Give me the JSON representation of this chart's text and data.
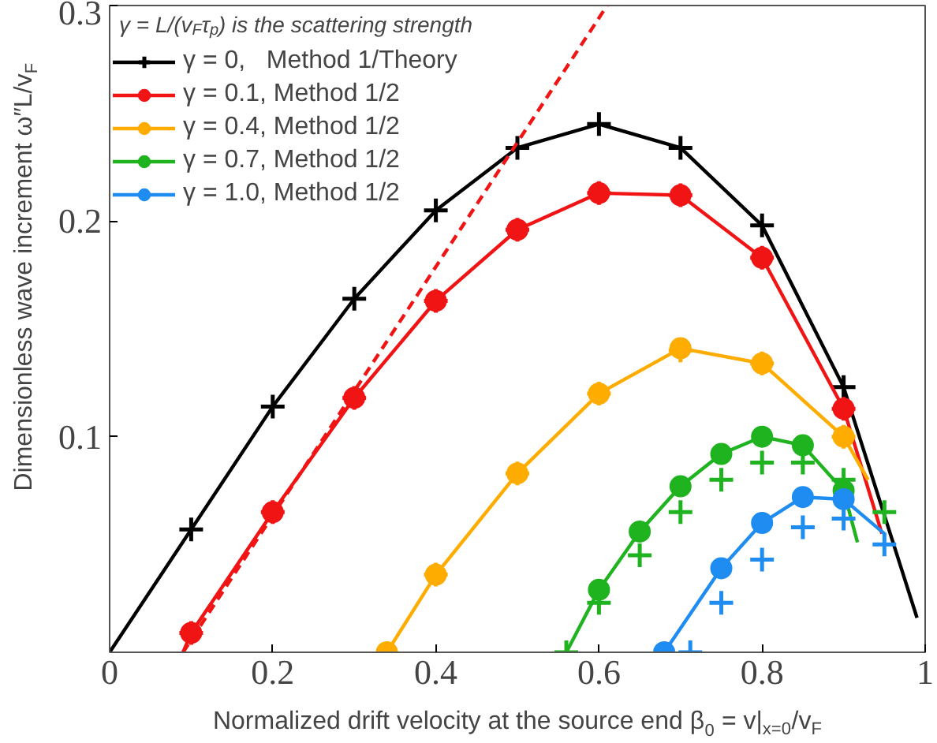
{
  "chart_data": {
    "type": "line",
    "xlabel": "Normalized drift velocity at the source end β$_{0}$ = v|$_{x=0}$/v$_{F}$",
    "ylabel": "Dimensionless wave increment  ω″L/v$_{F}$",
    "annotations": [
      "γ = L/(v$_{F}$τ$_{p}$) is the scattering strength"
    ],
    "xlim": [
      0,
      1
    ],
    "ylim": [
      0,
      0.3
    ],
    "xticks": [
      0,
      0.2,
      0.4,
      0.6,
      0.8,
      1
    ],
    "yticks": [
      0.1,
      0.2,
      0.3
    ],
    "grid": false,
    "legend": "top left",
    "marker": "none",
    "line_style": "solid",
    "series": [
      {
        "name": "γ = 0,   Method 1/Theory",
        "color": "#000000",
        "x": [
          0,
          0.1,
          0.2,
          0.3,
          0.4,
          0.5,
          0.6,
          0.7,
          0.8,
          0.9,
          0.99
        ],
        "values": [
          0,
          0.057,
          0.114,
          0.164,
          0.205,
          0.234,
          0.245,
          0.234,
          0.198,
          0.123,
          0.016
        ]
      },
      {
        "type": "scatter",
        "marker": "cross",
        "color": "#000000",
        "x": [
          0.1,
          0.2,
          0.3,
          0.4,
          0.5,
          0.6,
          0.7,
          0.8,
          0.9
        ],
        "values": [
          0.057,
          0.114,
          0.164,
          0.205,
          0.234,
          0.245,
          0.234,
          0.198,
          0.123
        ]
      },
      {
        "name": "γ = 0.1, Method 1/2",
        "color": "#f01414",
        "x": [
          0.09,
          0.1,
          0.2,
          0.3,
          0.4,
          0.5,
          0.6,
          0.7,
          0.8,
          0.9,
          0.947
        ],
        "values": [
          0,
          0.009,
          0.065,
          0.118,
          0.163,
          0.196,
          0.213,
          0.212,
          0.183,
          0.113,
          0.055
        ]
      },
      {
        "type": "scatter",
        "marker": "circle",
        "color": "#f01414",
        "x": [
          0.1,
          0.2,
          0.3,
          0.4,
          0.5,
          0.6,
          0.7,
          0.8,
          0.9
        ],
        "values": [
          0.009,
          0.065,
          0.118,
          0.163,
          0.196,
          0.213,
          0.212,
          0.183,
          0.113
        ]
      },
      {
        "type": "scatter",
        "marker": "cross",
        "color": "#f01414",
        "x": [
          0.1,
          0.2,
          0.3,
          0.4,
          0.5,
          0.6,
          0.7,
          0.8,
          0.9
        ],
        "values": [
          0.009,
          0.065,
          0.118,
          0.163,
          0.196,
          0.213,
          0.212,
          0.183,
          0.113
        ]
      },
      {
        "color": "#f01414",
        "line_style": "dashed",
        "x": [
          0.09,
          0.61
        ],
        "values": [
          0,
          0.3
        ]
      },
      {
        "name": "γ = 0.4, Method 1/2",
        "color": "#ffac00",
        "x": [
          0.34,
          0.4,
          0.5,
          0.6,
          0.7,
          0.8,
          0.9,
          0.93
        ],
        "values": [
          0,
          0.036,
          0.083,
          0.12,
          0.141,
          0.134,
          0.1,
          0.08
        ]
      },
      {
        "type": "scatter",
        "marker": "circle",
        "color": "#ffac00",
        "x": [
          0.34,
          0.4,
          0.5,
          0.6,
          0.7,
          0.8,
          0.9
        ],
        "values": [
          0,
          0.036,
          0.083,
          0.12,
          0.141,
          0.134,
          0.1
        ]
      },
      {
        "type": "scatter",
        "marker": "cross",
        "color": "#ffac00",
        "x": [
          0.4,
          0.5,
          0.6,
          0.7,
          0.8,
          0.9
        ],
        "values": [
          0.036,
          0.083,
          0.12,
          0.14,
          0.134,
          0.1
        ]
      },
      {
        "name": "γ = 0.7, Method 1/2",
        "color": "#1fb31f",
        "x": [
          0.56,
          0.6,
          0.65,
          0.7,
          0.75,
          0.8,
          0.85,
          0.9,
          0.917
        ],
        "values": [
          0,
          0.029,
          0.056,
          0.077,
          0.092,
          0.1,
          0.096,
          0.075,
          0.051
        ]
      },
      {
        "type": "scatter",
        "marker": "circle",
        "color": "#1fb31f",
        "x": [
          0.6,
          0.65,
          0.7,
          0.75,
          0.8,
          0.85,
          0.9
        ],
        "values": [
          0.029,
          0.056,
          0.077,
          0.092,
          0.1,
          0.096,
          0.075
        ]
      },
      {
        "type": "scatter",
        "marker": "cross",
        "color": "#1fb31f",
        "x": [
          0.56,
          0.6,
          0.65,
          0.7,
          0.75,
          0.8,
          0.85,
          0.9,
          0.95
        ],
        "values": [
          0,
          0.023,
          0.045,
          0.065,
          0.08,
          0.088,
          0.088,
          0.08,
          0.065
        ]
      },
      {
        "name": "γ = 1.0, Method 1/2",
        "color": "#1e8cf0",
        "x": [
          0.68,
          0.75,
          0.8,
          0.85,
          0.9,
          0.95
        ],
        "values": [
          0,
          0.039,
          0.06,
          0.072,
          0.071,
          0.055
        ]
      },
      {
        "type": "scatter",
        "marker": "circle",
        "color": "#1e8cf0",
        "x": [
          0.68,
          0.75,
          0.8,
          0.85,
          0.9
        ],
        "values": [
          0,
          0.039,
          0.06,
          0.072,
          0.071
        ]
      },
      {
        "type": "scatter",
        "marker": "cross",
        "color": "#1e8cf0",
        "x": [
          0.712,
          0.75,
          0.8,
          0.85,
          0.9,
          0.95
        ],
        "values": [
          0,
          0.023,
          0.043,
          0.058,
          0.062,
          0.05
        ]
      }
    ]
  }
}
